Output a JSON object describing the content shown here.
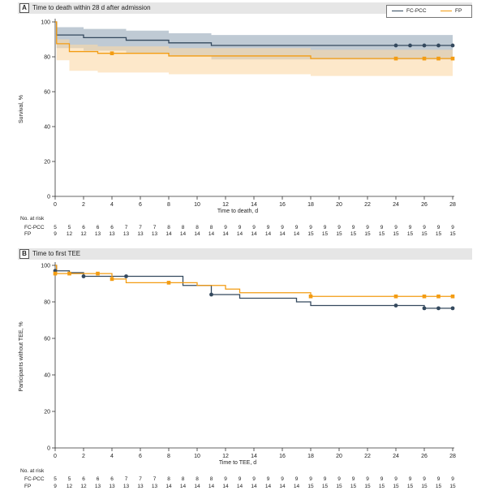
{
  "legend": {
    "items": [
      {
        "label": "FC-PCC",
        "color": "#34495e"
      },
      {
        "label": "FP",
        "color": "#f39c12"
      }
    ]
  },
  "risk_labels": {
    "header": "No. at risk",
    "row1": "FC-PCC",
    "row2": "FP"
  },
  "colors": {
    "fcpcc": "#34495e",
    "fp": "#f39c12",
    "fcpcc_band": "#a9b8c5",
    "fp_band": "#fcd9a7"
  },
  "chart_data": [
    {
      "type": "line",
      "panel_letter": "A",
      "title": "Time to death within 28 d after admission",
      "xlabel": "Time to death, d",
      "ylabel": "Survival, %",
      "xlim": [
        0,
        28
      ],
      "ylim": [
        0,
        100
      ],
      "x_ticks": [
        0,
        2,
        4,
        6,
        8,
        10,
        12,
        14,
        16,
        18,
        20,
        22,
        24,
        26,
        28
      ],
      "y_ticks": [
        0,
        20,
        40,
        60,
        80,
        100
      ],
      "series": [
        {
          "name": "FC-PCC",
          "step_x": [
            0,
            0.1,
            2,
            5,
            8,
            11,
            28
          ],
          "step_y": [
            100,
            92.5,
            91,
            89.5,
            88,
            86.5,
            86.5
          ],
          "band_x": [
            0,
            0.1,
            2,
            5,
            8,
            11,
            28
          ],
          "band_upper": [
            100,
            97,
            96,
            95,
            93.5,
            92.5,
            92.5
          ],
          "band_lower": [
            100,
            85,
            83.5,
            82,
            80.5,
            78.5,
            77
          ],
          "censor_x": [
            24,
            25,
            26,
            27,
            28
          ],
          "censor_y": [
            86.5,
            86.5,
            86.5,
            86.5,
            86.5
          ]
        },
        {
          "name": "FP",
          "step_x": [
            0,
            0.1,
            1,
            3,
            8,
            18,
            28
          ],
          "step_y": [
            100,
            87.5,
            83,
            82,
            80.5,
            79,
            79
          ],
          "band_x": [
            0,
            0.1,
            1,
            3,
            8,
            18,
            28
          ],
          "band_upper": [
            100,
            90,
            87,
            86,
            85,
            84,
            84
          ],
          "band_lower": [
            100,
            78,
            72,
            71,
            70,
            69,
            68
          ],
          "censor_x": [
            4,
            24,
            26,
            27,
            28
          ],
          "censor_y": [
            82,
            79,
            79,
            79,
            79
          ]
        }
      ],
      "risk_x": [
        0,
        1,
        2,
        3,
        4,
        5,
        6,
        7,
        8,
        9,
        10,
        11,
        12,
        13,
        14,
        15,
        16,
        17,
        18,
        19,
        20,
        21,
        22,
        23,
        24,
        25,
        26,
        27,
        28
      ],
      "risk_fcpcc": [
        "5",
        "5",
        "6",
        "6",
        "6",
        "7",
        "7",
        "7",
        "8",
        "8",
        "8",
        "8",
        "9",
        "9",
        "9",
        "9",
        "9",
        "9",
        "9",
        "9",
        "9",
        "9",
        "9",
        "9",
        "9",
        "9",
        "9",
        "9",
        "9"
      ],
      "risk_fp": [
        "9",
        "12",
        "12",
        "13",
        "13",
        "13",
        "13",
        "13",
        "14",
        "14",
        "14",
        "14",
        "14",
        "14",
        "14",
        "14",
        "14",
        "14",
        "15",
        "15",
        "15",
        "15",
        "15",
        "15",
        "15",
        "15",
        "15",
        "15",
        "15"
      ]
    },
    {
      "type": "line",
      "panel_letter": "B",
      "title": "Time to first TEE",
      "xlabel": "Time to TEE, d",
      "ylabel": "Participants without TEE, %",
      "xlim": [
        0,
        28
      ],
      "ylim": [
        0,
        100
      ],
      "x_ticks": [
        0,
        2,
        4,
        6,
        8,
        10,
        12,
        14,
        16,
        18,
        20,
        22,
        24,
        26,
        28
      ],
      "y_ticks": [
        0,
        20,
        40,
        60,
        80,
        100
      ],
      "series": [
        {
          "name": "FC-PCC",
          "step_x": [
            0,
            0.1,
            1,
            2,
            5,
            9,
            10,
            11,
            13,
            17,
            18,
            26,
            28
          ],
          "step_y": [
            100,
            97,
            96,
            94,
            94,
            89,
            89,
            84,
            82,
            80,
            78,
            76.5,
            76.5
          ],
          "censor_x": [
            0,
            2,
            5,
            11,
            24,
            26,
            27,
            28
          ],
          "censor_y": [
            97,
            94,
            94,
            84,
            78,
            76.5,
            76.5,
            76.5
          ]
        },
        {
          "name": "FP",
          "step_x": [
            0,
            0.1,
            1,
            4,
            5,
            8,
            10,
            12,
            13,
            18,
            28
          ],
          "step_y": [
            100,
            95.5,
            95.5,
            92.5,
            90.5,
            90.5,
            89,
            87,
            85,
            83,
            83
          ],
          "censor_x": [
            0,
            1,
            3,
            4,
            8,
            18,
            24,
            26,
            27,
            28
          ],
          "censor_y": [
            95.5,
            95.5,
            95.5,
            92.5,
            90.5,
            83,
            83,
            83,
            83,
            83
          ]
        }
      ],
      "risk_x": [
        0,
        1,
        2,
        3,
        4,
        5,
        6,
        7,
        8,
        9,
        10,
        11,
        12,
        13,
        14,
        15,
        16,
        17,
        18,
        19,
        20,
        21,
        22,
        23,
        24,
        25,
        26,
        27,
        28
      ],
      "risk_fcpcc": [
        "5",
        "5",
        "6",
        "6",
        "6",
        "7",
        "7",
        "7",
        "8",
        "8",
        "8",
        "8",
        "9",
        "9",
        "9",
        "9",
        "9",
        "9",
        "9",
        "9",
        "9",
        "9",
        "9",
        "9",
        "9",
        "9",
        "9",
        "9",
        "9"
      ],
      "risk_fp": [
        "9",
        "12",
        "12",
        "13",
        "13",
        "13",
        "13",
        "13",
        "14",
        "14",
        "14",
        "14",
        "14",
        "14",
        "14",
        "14",
        "14",
        "14",
        "15",
        "15",
        "15",
        "15",
        "15",
        "15",
        "15",
        "15",
        "15",
        "15",
        "15"
      ]
    }
  ]
}
